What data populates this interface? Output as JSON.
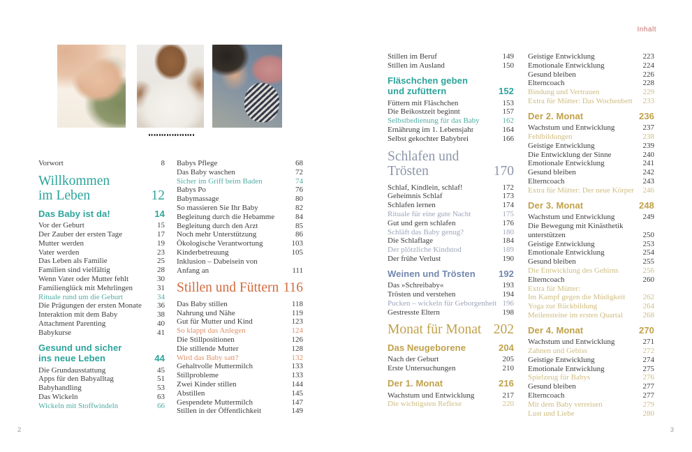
{
  "header": {
    "running_title": "Inhalt"
  },
  "footer": {
    "left_page_number": "2",
    "right_page_number": "3"
  },
  "colors": {
    "teal_accent": "#2BA49B",
    "orange_accent": "#D26A3D",
    "slate_accent": "#8C96AA",
    "slate_section_accent": "#7287AE",
    "gold_accent": "#C0A14B",
    "teal_highlight": "#4FACA4",
    "orange_highlight": "#DC9068",
    "slate_highlight": "#9DA6BA",
    "gold_highlight": "#CEBC80",
    "body_text": "#3C3C3C",
    "running_title": "#C2706C",
    "folio_gray": "#9B9B9B"
  },
  "photos": [
    {
      "name": "photo-mother-kissing-sleeping-baby",
      "description": "mother with sleeping newborn in green shirt"
    },
    {
      "name": "photo-baby-doctor-checkup",
      "description": "baby in white shirt examined with stethoscope"
    },
    {
      "name": "photo-father-holding-baby",
      "description": "father in blue shirt holding baby with rose cap"
    }
  ],
  "columns": [
    {
      "items": [
        {
          "type": "entry",
          "label": "Vorwort",
          "page": "8"
        },
        {
          "type": "chapter",
          "theme": "teal",
          "lines": [
            "Willkommen",
            "im Leben"
          ],
          "page": "12"
        },
        {
          "type": "section",
          "theme": "teal",
          "lines": [
            "Das Baby ist da!"
          ],
          "page": "14"
        },
        {
          "type": "entry",
          "label": "Vor der Geburt",
          "page": "15"
        },
        {
          "type": "entry",
          "label": "Der Zauber der ersten Tage",
          "page": "17"
        },
        {
          "type": "entry",
          "label": "Mutter werden",
          "page": "19"
        },
        {
          "type": "entry",
          "label": "Vater werden",
          "page": "23"
        },
        {
          "type": "entry",
          "label": "Das Leben als Familie",
          "page": "25"
        },
        {
          "type": "entry",
          "label": "Familien sind vielfältig",
          "page": "28"
        },
        {
          "type": "entry",
          "label": "Wenn Vater oder Mutter fehlt",
          "page": "30"
        },
        {
          "type": "entry",
          "label": "Familienglück mit Mehrlingen",
          "page": "31"
        },
        {
          "type": "entry",
          "label": "Rituale rund um die Geburt",
          "page": "34",
          "hl": true,
          "theme": "teal"
        },
        {
          "type": "entry",
          "label": "Die Prägungen der ersten Monate",
          "page": "36"
        },
        {
          "type": "entry",
          "label": "Interaktion mit dem Baby",
          "page": "38"
        },
        {
          "type": "entry",
          "label": "Attachment Parenting",
          "page": "40"
        },
        {
          "type": "entry",
          "label": "Babykurse",
          "page": "41"
        },
        {
          "type": "section",
          "theme": "teal",
          "lines": [
            "Gesund und sicher",
            "ins neue Leben"
          ],
          "page": "44"
        },
        {
          "type": "entry",
          "label": "Die Grundausstattung",
          "page": "45"
        },
        {
          "type": "entry",
          "label": "Apps für den Babyalltag",
          "page": "51"
        },
        {
          "type": "entry",
          "label": "Babyhandling",
          "page": "53"
        },
        {
          "type": "entry",
          "label": "Das Wickeln",
          "page": "63"
        },
        {
          "type": "entry",
          "label": "Wickeln mit Stoffwindeln",
          "page": "66",
          "hl": true,
          "theme": "teal"
        }
      ]
    },
    {
      "items": [
        {
          "type": "entry",
          "label": "Babys Pflege",
          "page": "68"
        },
        {
          "type": "entry",
          "label": "Das Baby waschen",
          "page": "72"
        },
        {
          "type": "entry",
          "label": "Sicher im Griff beim Baden",
          "page": "74",
          "hl": true,
          "theme": "teal"
        },
        {
          "type": "entry",
          "label": "Babys Po",
          "page": "76"
        },
        {
          "type": "entry",
          "label": "Babymassage",
          "page": "80"
        },
        {
          "type": "entry",
          "label": "So massieren Sie Ihr Baby",
          "page": "82"
        },
        {
          "type": "entry",
          "label": "Begleitung durch die Hebamme",
          "page": "84"
        },
        {
          "type": "entry",
          "label": "Begleitung durch den Arzt",
          "page": "85"
        },
        {
          "type": "entry",
          "label": "Noch mehr Unterstützung",
          "page": "86"
        },
        {
          "type": "entry",
          "label": "Ökologische Verantwortung",
          "page": "103"
        },
        {
          "type": "entry",
          "label": "Kinderbetreuung",
          "page": "105"
        },
        {
          "type": "entry",
          "lines": [
            "Inklusion – Dabeisein von",
            "Anfang an"
          ],
          "page": "111"
        },
        {
          "type": "chapter",
          "theme": "orange",
          "lines": [
            "Stillen und Füttern"
          ],
          "page": "116"
        },
        {
          "type": "entry",
          "label": "Das Baby stillen",
          "page": "118"
        },
        {
          "type": "entry",
          "label": "Nahrung und Nähe",
          "page": "119"
        },
        {
          "type": "entry",
          "label": "Gut für Mutter und Kind",
          "page": "123"
        },
        {
          "type": "entry",
          "label": "So klappt das Anlegen",
          "page": "124",
          "hl": true,
          "theme": "orange"
        },
        {
          "type": "entry",
          "label": "Die Stillpositionen",
          "page": "126"
        },
        {
          "type": "entry",
          "label": "Die stillende Mutter",
          "page": "128"
        },
        {
          "type": "entry",
          "label": "Wird das Baby satt?",
          "page": "132",
          "hl": true,
          "theme": "orange"
        },
        {
          "type": "entry",
          "label": "Gehaltvolle Muttermilch",
          "page": "133"
        },
        {
          "type": "entry",
          "label": "Stillprobleme",
          "page": "133"
        },
        {
          "type": "entry",
          "label": "Zwei Kinder stillen",
          "page": "144"
        },
        {
          "type": "entry",
          "label": "Abstillen",
          "page": "145"
        },
        {
          "type": "entry",
          "label": "Gespendete Muttermilch",
          "page": "147"
        },
        {
          "type": "entry",
          "label": "Stillen in der Öffentlichkeit",
          "page": "149"
        }
      ]
    },
    {
      "items": [
        {
          "type": "entry",
          "label": "Stillen im Beruf",
          "page": "149"
        },
        {
          "type": "entry",
          "label": "Stillen im Ausland",
          "page": "150"
        },
        {
          "type": "section",
          "theme": "teal",
          "lines": [
            "Fläschchen geben",
            "und zufüttern"
          ],
          "page": "152"
        },
        {
          "type": "entry",
          "label": "Füttern mit Fläschchen",
          "page": "153"
        },
        {
          "type": "entry",
          "label": "Die Beikostzeit beginnt",
          "page": "157"
        },
        {
          "type": "entry",
          "label": "Selbstbedienung für das Baby",
          "page": "162",
          "hl": true,
          "theme": "teal"
        },
        {
          "type": "entry",
          "label": "Ernährung im 1. Lebensjahr",
          "page": "164"
        },
        {
          "type": "entry",
          "label": "Selbst gekochter Babybrei",
          "page": "166"
        },
        {
          "type": "chapter",
          "theme": "slate",
          "lines": [
            "Schlafen und",
            "Trösten"
          ],
          "page": "170"
        },
        {
          "type": "entry",
          "label": "Schlaf, Kindlein, schlaf!",
          "page": "172"
        },
        {
          "type": "entry",
          "label": "Geheimnis Schlaf",
          "page": "173"
        },
        {
          "type": "entry",
          "label": "Schlafen lernen",
          "page": "174"
        },
        {
          "type": "entry",
          "label": "Rituale für eine gute Nacht",
          "page": "175",
          "hl": true,
          "theme": "slate"
        },
        {
          "type": "entry",
          "label": "Gut und gern schlafen",
          "page": "176"
        },
        {
          "type": "entry",
          "label": "Schläft das Baby genug?",
          "page": "180",
          "hl": true,
          "theme": "slate"
        },
        {
          "type": "entry",
          "label": "Die Schlaflage",
          "page": "184"
        },
        {
          "type": "entry",
          "label": "Der plötzliche Kindstod",
          "page": "189",
          "hl": true,
          "theme": "slate"
        },
        {
          "type": "entry",
          "label": "Der frühe Verlust",
          "page": "190"
        },
        {
          "type": "section",
          "theme": "slate2",
          "lines": [
            "Weinen und Trösten"
          ],
          "page": "192"
        },
        {
          "type": "entry",
          "label": "Das »Schreibaby«",
          "page": "193"
        },
        {
          "type": "entry",
          "label": "Trösten und verstehen",
          "page": "194"
        },
        {
          "type": "entry",
          "label": "Pucken – wickeln für Geborgenheit",
          "page": "196",
          "hl": true,
          "theme": "slate"
        },
        {
          "type": "entry",
          "label": "Gestresste Eltern",
          "page": "198"
        },
        {
          "type": "chapter",
          "theme": "gold",
          "lines": [
            "Monat für Monat"
          ],
          "page": "202"
        },
        {
          "type": "section",
          "theme": "gold",
          "lines": [
            "Das Neugeborene"
          ],
          "page": "204"
        },
        {
          "type": "entry",
          "label": "Nach der Geburt",
          "page": "205"
        },
        {
          "type": "entry",
          "label": "Erste Untersuchungen",
          "page": "210"
        },
        {
          "type": "section",
          "theme": "gold",
          "lines": [
            "Der 1. Monat"
          ],
          "page": "216"
        },
        {
          "type": "entry",
          "label": "Wachstum und Entwicklung",
          "page": "217"
        },
        {
          "type": "entry",
          "label": "Die wichtigsten Reflexe",
          "page": "220",
          "hl": true,
          "theme": "gold"
        }
      ]
    },
    {
      "items": [
        {
          "type": "entry",
          "label": "Geistige Entwicklung",
          "page": "223"
        },
        {
          "type": "entry",
          "label": "Emotionale Entwicklung",
          "page": "224"
        },
        {
          "type": "entry",
          "label": "Gesund bleiben",
          "page": "226"
        },
        {
          "type": "entry",
          "label": "Elterncoach",
          "page": "228"
        },
        {
          "type": "entry",
          "label": "Bindung und Vertrauen",
          "page": "229",
          "hl": true,
          "theme": "gold"
        },
        {
          "type": "entry",
          "label": "Extra für Mütter: Das Wochenbett",
          "page": "233",
          "hl": true,
          "theme": "gold"
        },
        {
          "type": "section",
          "theme": "gold",
          "lines": [
            "Der 2. Monat"
          ],
          "page": "236"
        },
        {
          "type": "entry",
          "label": "Wachstum und Entwicklung",
          "page": "237"
        },
        {
          "type": "entry",
          "label": "Fehlbildungen",
          "page": "238",
          "hl": true,
          "theme": "gold"
        },
        {
          "type": "entry",
          "label": "Geistige Entwicklung",
          "page": "239"
        },
        {
          "type": "entry",
          "label": "Die Entwicklung der Sinne",
          "page": "240"
        },
        {
          "type": "entry",
          "label": "Emotionale Entwicklung",
          "page": "241"
        },
        {
          "type": "entry",
          "label": "Gesund bleiben",
          "page": "242"
        },
        {
          "type": "entry",
          "label": "Elterncoach",
          "page": "243"
        },
        {
          "type": "entry",
          "label": "Extra für Mütter: Der neue Körper",
          "page": "246",
          "hl": true,
          "theme": "gold"
        },
        {
          "type": "section",
          "theme": "gold",
          "lines": [
            "Der 3. Monat"
          ],
          "page": "248"
        },
        {
          "type": "entry",
          "label": "Wachstum und Entwicklung",
          "page": "249"
        },
        {
          "type": "entry",
          "lines": [
            "Die Bewegung mit Kinästhetik",
            "unterstützen"
          ],
          "page": "250"
        },
        {
          "type": "entry",
          "label": "Geistige Entwicklung",
          "page": "253"
        },
        {
          "type": "entry",
          "label": "Emotionale Entwicklung",
          "page": "254"
        },
        {
          "type": "entry",
          "label": "Gesund bleiben",
          "page": "255"
        },
        {
          "type": "entry",
          "label": "Die Entwicklung des Gehirns",
          "page": "256",
          "hl": true,
          "theme": "gold"
        },
        {
          "type": "entry",
          "label": "Elterncoach",
          "page": "260"
        },
        {
          "type": "entry",
          "lines": [
            "Extra für Mütter:",
            "Im Kampf gegen die Müdigkeit"
          ],
          "page": "262",
          "hl": true,
          "theme": "gold"
        },
        {
          "type": "entry",
          "label": "Yoga zur Rückbildung",
          "page": "264",
          "hl": true,
          "theme": "gold"
        },
        {
          "type": "entry",
          "label": "Meilensteine im ersten Quartal",
          "page": "268",
          "hl": true,
          "theme": "gold"
        },
        {
          "type": "section",
          "theme": "gold",
          "lines": [
            "Der 4. Monat"
          ],
          "page": "270"
        },
        {
          "type": "entry",
          "label": "Wachstum und Entwicklung",
          "page": "271"
        },
        {
          "type": "entry",
          "label": "Zahnen und Gebiss",
          "page": "272",
          "hl": true,
          "theme": "gold"
        },
        {
          "type": "entry",
          "label": "Geistige Entwicklung",
          "page": "274"
        },
        {
          "type": "entry",
          "label": "Emotionale Entwicklung",
          "page": "275"
        },
        {
          "type": "entry",
          "label": "Spielzeug für Babys",
          "page": "276",
          "hl": true,
          "theme": "gold"
        },
        {
          "type": "entry",
          "label": "Gesund bleiben",
          "page": "277"
        },
        {
          "type": "entry",
          "label": "Elterncoach",
          "page": "277"
        },
        {
          "type": "entry",
          "label": "Mit dem Baby verreisen",
          "page": "279",
          "hl": true,
          "theme": "gold"
        },
        {
          "type": "entry",
          "label": "Lust und Liebe",
          "page": "280",
          "hl": true,
          "theme": "gold"
        }
      ]
    }
  ]
}
